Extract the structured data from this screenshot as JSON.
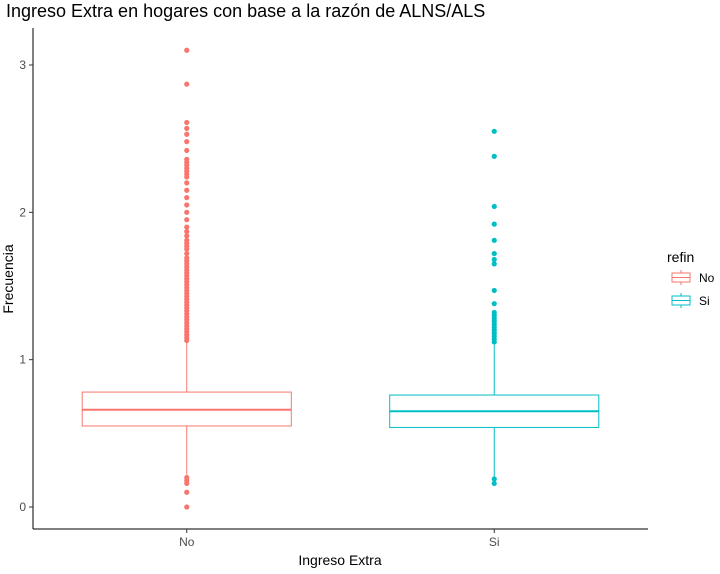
{
  "chart_data": {
    "type": "boxplot",
    "title": "Ingreso Extra en hogares con base a la razón de ALNS/ALS",
    "xlabel": "Ingreso Extra",
    "ylabel": "Frecuencia",
    "ylim": [
      -0.15,
      3.25
    ],
    "yticks": [
      0,
      1,
      2,
      3
    ],
    "grid": false,
    "legend": {
      "title": "refin",
      "position": "right",
      "entries": [
        "No",
        "Si"
      ]
    },
    "categories": [
      "No",
      "Si"
    ],
    "series": [
      {
        "name": "No",
        "color": "#F8766D",
        "q1": 0.55,
        "median": 0.66,
        "q3": 0.78,
        "whisker_low": 0.22,
        "whisker_high": 1.12,
        "outliers": [
          3.1,
          2.87,
          2.61,
          2.57,
          2.53,
          2.48,
          2.42,
          2.36,
          2.34,
          2.32,
          2.3,
          2.28,
          2.26,
          2.24,
          2.2,
          2.15,
          2.1,
          2.05,
          2.0,
          1.95,
          1.9,
          1.87,
          1.84,
          1.81,
          1.79,
          1.77,
          1.75,
          1.72,
          1.69,
          1.67,
          1.65,
          1.63,
          1.61,
          1.59,
          1.57,
          1.55,
          1.53,
          1.51,
          1.49,
          1.47,
          1.45,
          1.43,
          1.41,
          1.39,
          1.37,
          1.35,
          1.33,
          1.31,
          1.29,
          1.27,
          1.25,
          1.23,
          1.21,
          1.19,
          1.17,
          1.15,
          1.13,
          0.2,
          0.18,
          0.16,
          0.1,
          0.0
        ]
      },
      {
        "name": "Si",
        "color": "#00BFC4",
        "q1": 0.54,
        "median": 0.65,
        "q3": 0.76,
        "whisker_low": 0.2,
        "whisker_high": 1.1,
        "outliers": [
          2.55,
          2.38,
          2.04,
          1.92,
          1.81,
          1.72,
          1.68,
          1.65,
          1.47,
          1.38,
          1.32,
          1.3,
          1.28,
          1.26,
          1.24,
          1.22,
          1.2,
          1.18,
          1.16,
          1.14,
          1.12,
          0.19,
          0.16
        ]
      }
    ]
  }
}
